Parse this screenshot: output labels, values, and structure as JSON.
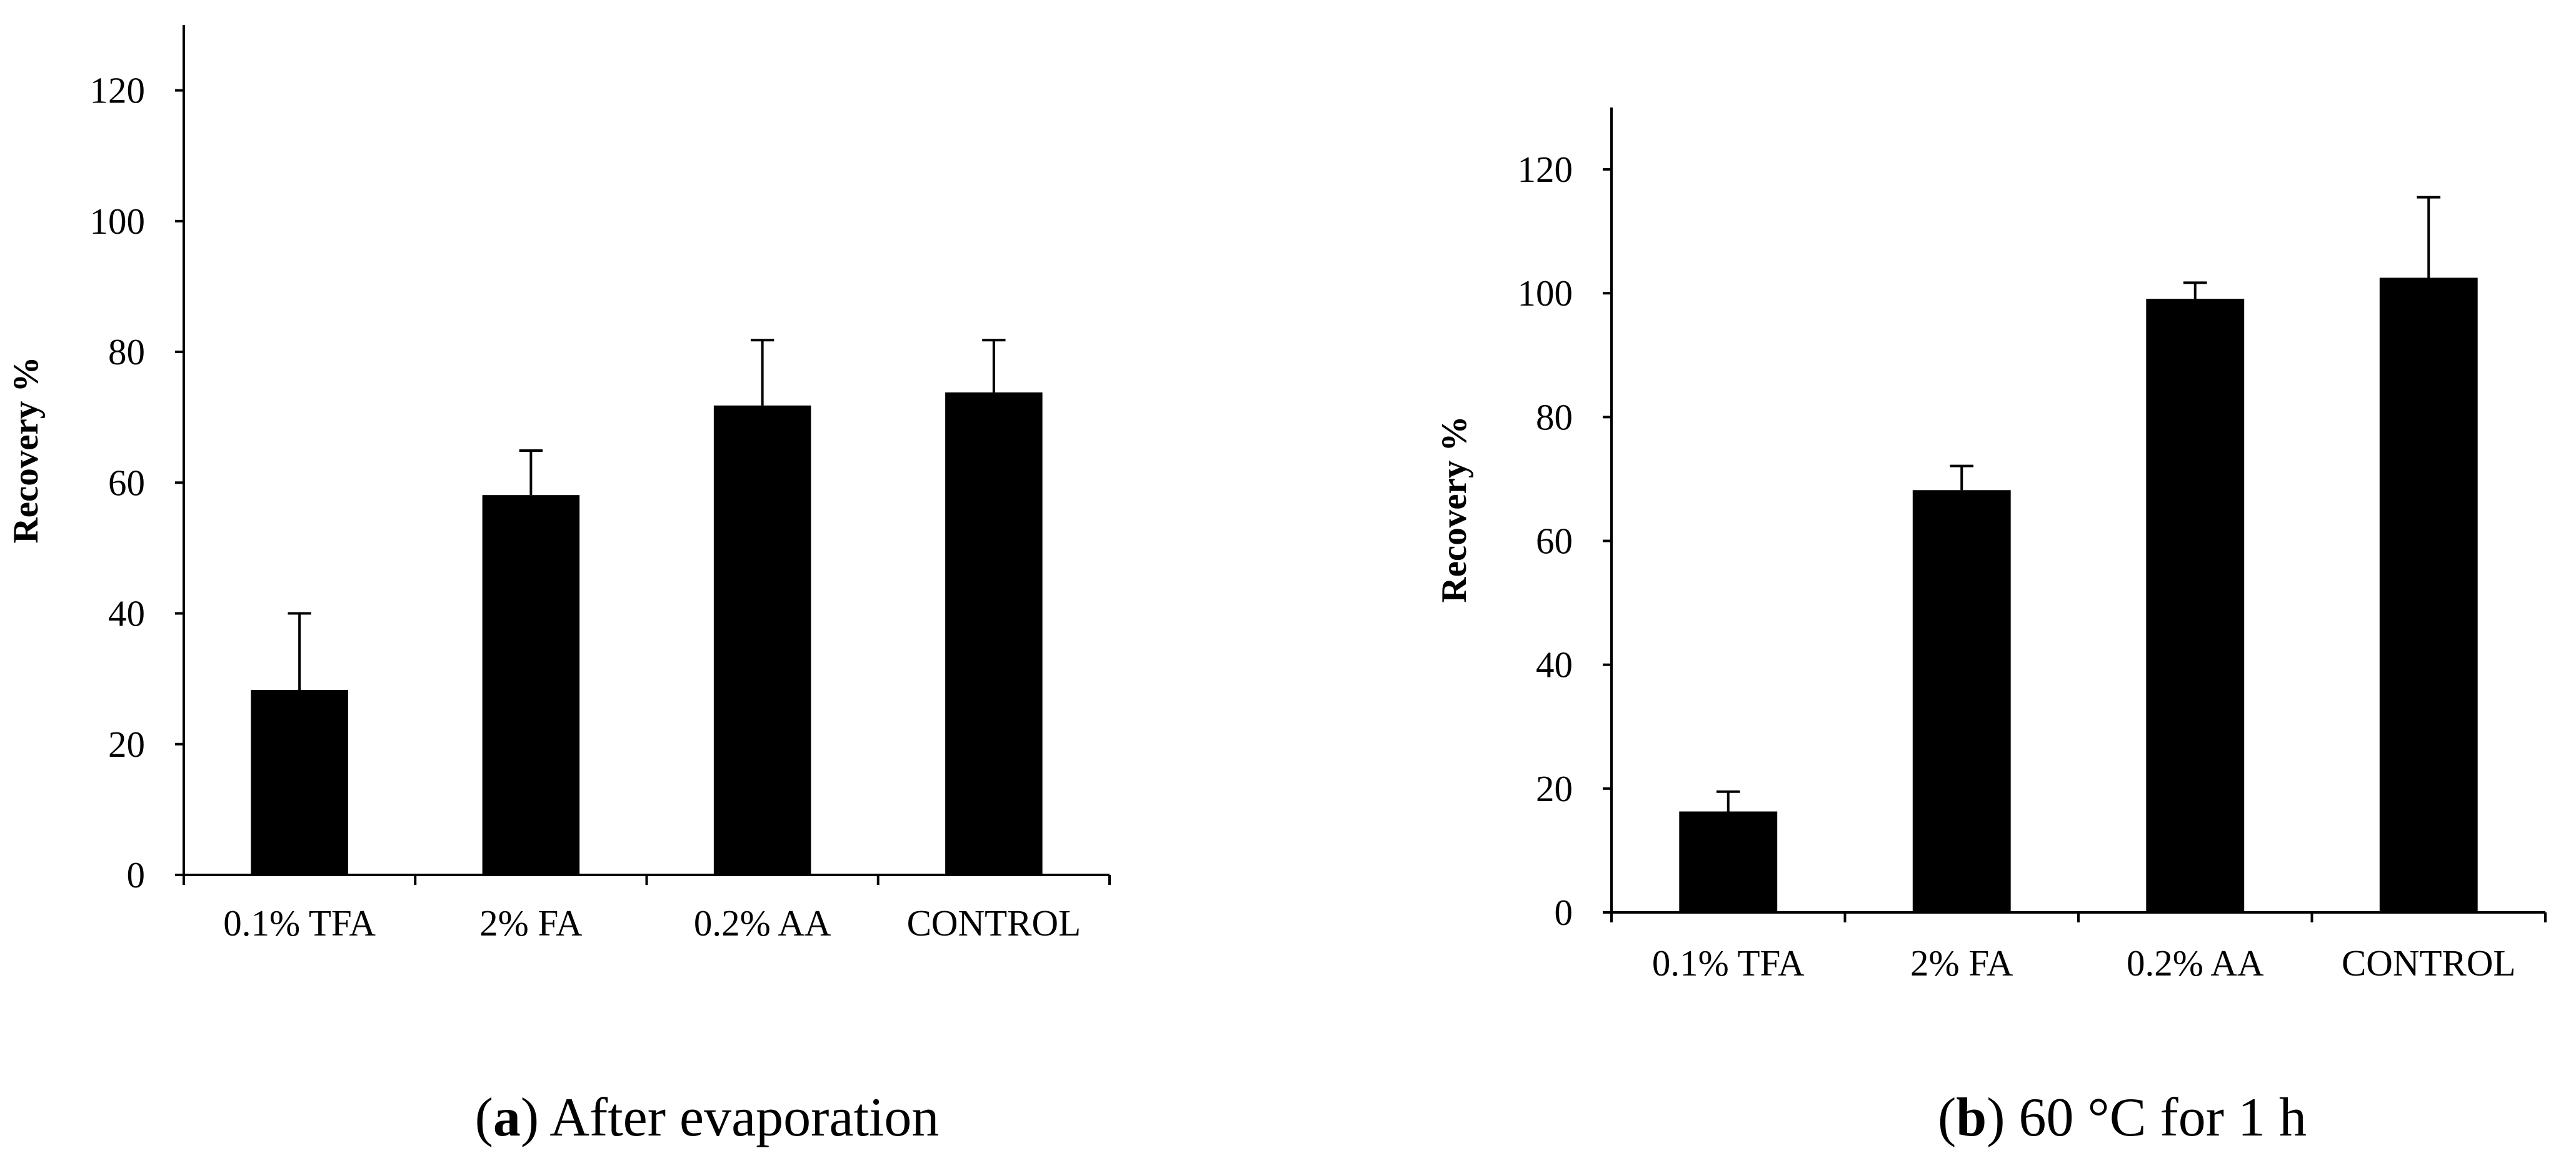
{
  "chart_data": [
    {
      "type": "bar",
      "caption_letter": "a",
      "caption_text": "After evaporation",
      "ylabel": "Recovery %",
      "xlabel": "",
      "ylim": [
        0,
        130
      ],
      "yticks": [
        0,
        20,
        40,
        60,
        80,
        100,
        120
      ],
      "categories": [
        "0.1% TFA",
        "2% FA",
        "0.2% AA",
        "CONTROL"
      ],
      "values": [
        28.3,
        58.1,
        71.8,
        73.8
      ],
      "errors": [
        11.7,
        6.8,
        10.0,
        8.0
      ],
      "bar_color": "#000000"
    },
    {
      "type": "bar",
      "caption_letter": "b",
      "caption_text": "60 °C for 1 h",
      "ylabel": "Recovery %",
      "xlabel": "",
      "ylim": [
        0,
        130
      ],
      "yticks": [
        0,
        20,
        40,
        60,
        80,
        100,
        120
      ],
      "categories": [
        "0.1% TFA",
        "2% FA",
        "0.2% AA",
        "CONTROL"
      ],
      "values": [
        16.3,
        68.2,
        99.1,
        102.5
      ],
      "errors": [
        3.2,
        3.9,
        2.6,
        13.0
      ],
      "bar_color": "#000000"
    }
  ]
}
